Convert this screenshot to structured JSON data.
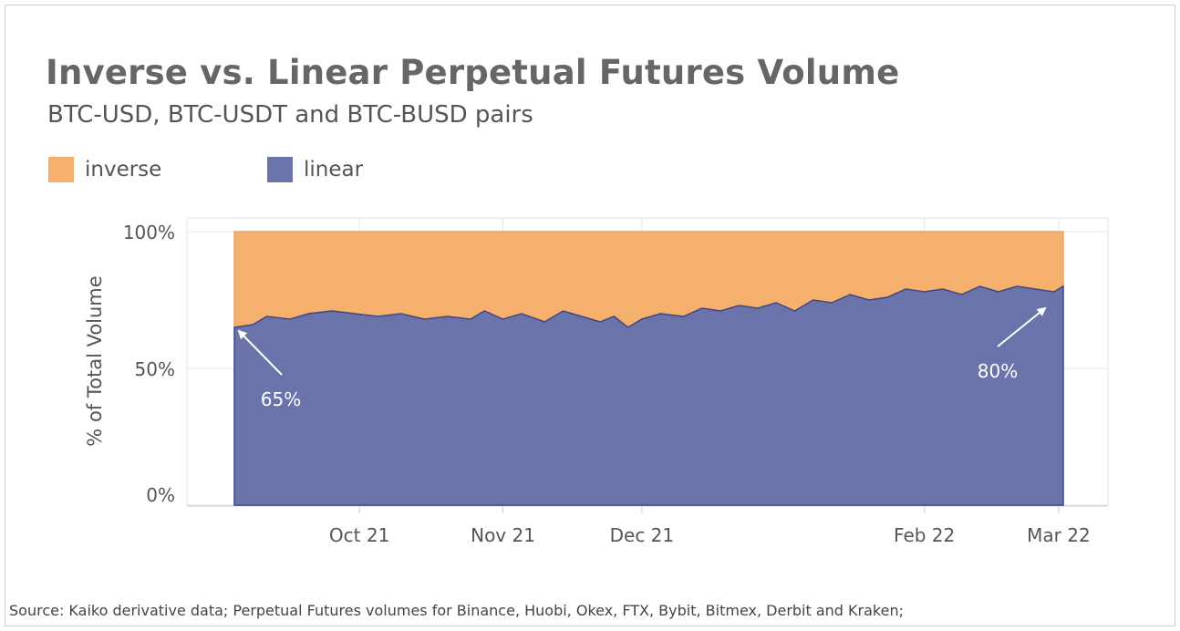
{
  "title": "Inverse vs. Linear Perpetual Futures Volume",
  "subtitle": "BTC-USD, BTC-USDT and BTC-BUSD pairs",
  "source": "Source: Kaiko derivative data; Perpetual Futures volumes for Binance, Huobi, Okex, FTX, Bybit, Bitmex, Derbit and Kraken;",
  "legend": [
    {
      "label": "inverse",
      "color": "#f5b06e"
    },
    {
      "label": "linear",
      "color": "#6b74aa"
    }
  ],
  "chart_data": {
    "type": "area",
    "stacked": true,
    "normalized": true,
    "title": "Inverse vs. Linear Perpetual Futures Volume",
    "subtitle": "BTC-USD, BTC-USDT and BTC-BUSD pairs",
    "xlabel": "",
    "ylabel": "% of Total Volume",
    "ylim": [
      0,
      100
    ],
    "y_ticks": [
      "0%",
      "50%",
      "100%"
    ],
    "x_range": [
      "2021-09-04",
      "2022-03-02"
    ],
    "x_ticks": [
      {
        "label": "Oct 21",
        "date": "2021-10-01"
      },
      {
        "label": "Nov 21",
        "date": "2021-11-01"
      },
      {
        "label": "Dec 21",
        "date": "2021-12-01"
      },
      {
        "label": "Feb 22",
        "date": "2022-01-31"
      },
      {
        "label": "Mar 22",
        "date": "2022-03-01"
      }
    ],
    "grid": true,
    "legend_position": "top-left",
    "series": [
      {
        "name": "linear",
        "color": "#6b74aa",
        "values_note": "percent of total volume",
        "points": [
          [
            "2021-09-04",
            65
          ],
          [
            "2021-09-08",
            66
          ],
          [
            "2021-09-11",
            69
          ],
          [
            "2021-09-16",
            68
          ],
          [
            "2021-09-20",
            70
          ],
          [
            "2021-09-25",
            71
          ],
          [
            "2021-09-30",
            70
          ],
          [
            "2021-10-05",
            69
          ],
          [
            "2021-10-10",
            70
          ],
          [
            "2021-10-15",
            68
          ],
          [
            "2021-10-20",
            69
          ],
          [
            "2021-10-25",
            68
          ],
          [
            "2021-10-28",
            71
          ],
          [
            "2021-11-01",
            68
          ],
          [
            "2021-11-05",
            70
          ],
          [
            "2021-11-10",
            67
          ],
          [
            "2021-11-14",
            71
          ],
          [
            "2021-11-18",
            69
          ],
          [
            "2021-11-22",
            67
          ],
          [
            "2021-11-25",
            69
          ],
          [
            "2021-11-28",
            65
          ],
          [
            "2021-12-01",
            68
          ],
          [
            "2021-12-05",
            70
          ],
          [
            "2021-12-10",
            69
          ],
          [
            "2021-12-14",
            72
          ],
          [
            "2021-12-18",
            71
          ],
          [
            "2021-12-22",
            73
          ],
          [
            "2021-12-26",
            72
          ],
          [
            "2021-12-30",
            74
          ],
          [
            "2022-01-03",
            71
          ],
          [
            "2022-01-07",
            75
          ],
          [
            "2022-01-11",
            74
          ],
          [
            "2022-01-15",
            77
          ],
          [
            "2022-01-19",
            75
          ],
          [
            "2022-01-23",
            76
          ],
          [
            "2022-01-27",
            79
          ],
          [
            "2022-01-31",
            78
          ],
          [
            "2022-02-04",
            79
          ],
          [
            "2022-02-08",
            77
          ],
          [
            "2022-02-12",
            80
          ],
          [
            "2022-02-16",
            78
          ],
          [
            "2022-02-20",
            80
          ],
          [
            "2022-02-24",
            79
          ],
          [
            "2022-02-28",
            78
          ],
          [
            "2022-03-02",
            80
          ]
        ]
      },
      {
        "name": "inverse",
        "color": "#f5b06e",
        "values_note": "remainder to 100%"
      }
    ],
    "annotations": [
      {
        "text": "65%",
        "date": "2021-09-04",
        "value": 65
      },
      {
        "text": "80%",
        "date": "2022-03-02",
        "value": 80
      }
    ]
  }
}
